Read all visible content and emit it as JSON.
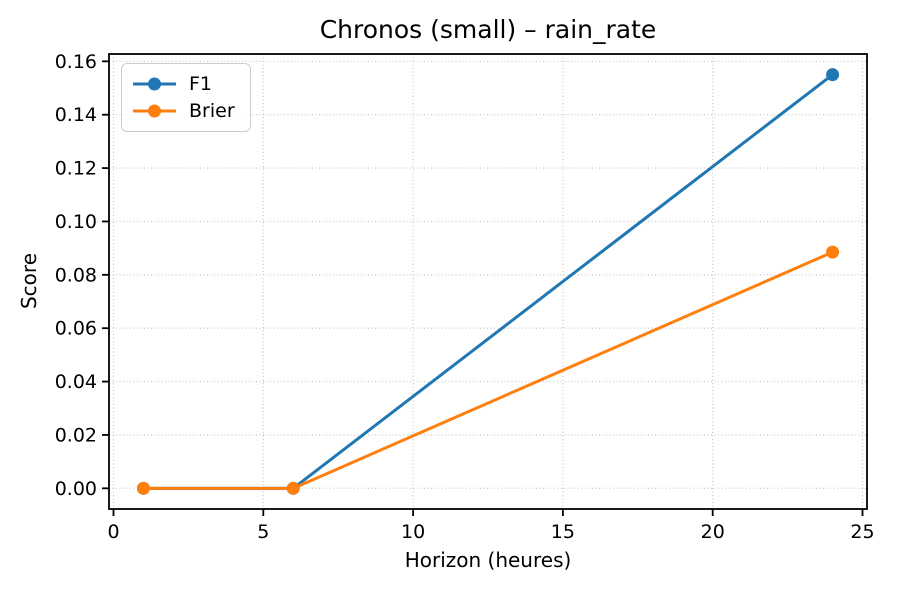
{
  "chart_data": {
    "type": "line",
    "title": "Chronos (small) – rain_rate",
    "xlabel": "Horizon (heures)",
    "ylabel": "Score",
    "x": [
      1,
      6,
      24
    ],
    "series": [
      {
        "name": "F1",
        "color": "#1f77b4",
        "values": [
          0.0,
          0.0,
          0.155
        ]
      },
      {
        "name": "Brier",
        "color": "#ff7f0e",
        "values": [
          0.0,
          0.0,
          0.0885
        ]
      }
    ],
    "xlim": [
      -0.15,
      25.15
    ],
    "ylim": [
      -0.00775,
      0.16275
    ],
    "xticks": [
      0,
      5,
      10,
      15,
      20,
      25
    ],
    "xtick_labels": [
      "0",
      "5",
      "10",
      "15",
      "20",
      "25"
    ],
    "yticks": [
      0.0,
      0.02,
      0.04,
      0.06,
      0.08,
      0.1,
      0.12,
      0.14,
      0.16
    ],
    "ytick_labels": [
      "0.00",
      "0.02",
      "0.04",
      "0.06",
      "0.08",
      "0.10",
      "0.12",
      "0.14",
      "0.16"
    ],
    "grid": true,
    "grid_style": "dotted",
    "legend_position": "upper left",
    "marker": "o",
    "line_width": 3,
    "marker_radius": 6.5
  },
  "colors": {
    "grid": "#cccccc",
    "spine": "#000000",
    "text": "#000000",
    "background": "#ffffff",
    "legend_border": "#cccccc"
  }
}
